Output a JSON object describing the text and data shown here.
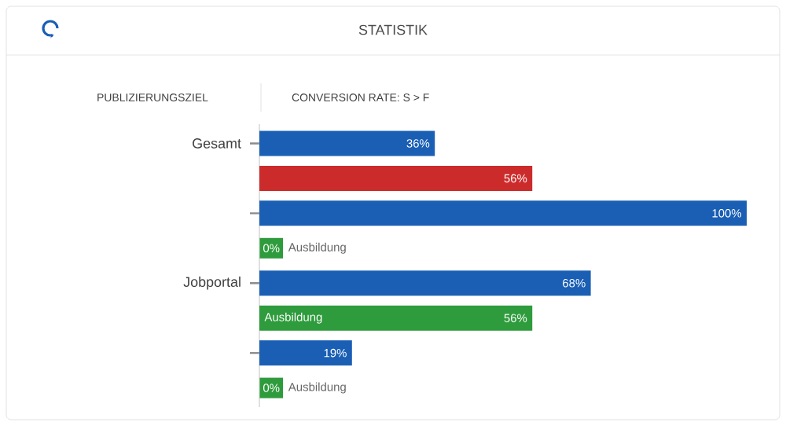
{
  "chart_data": {
    "type": "bar",
    "orientation": "horizontal",
    "title": "STATISTIK",
    "subtitle": "PUBLIZIERUNGSZIEL",
    "annotations": [
      "CONVERSION RATE: S > F"
    ],
    "categories": [
      "Gesamt",
      null,
      "Jobportal",
      null
    ],
    "series": [
      {
        "color": "#1a5fb4",
        "values": [
          36,
          100,
          68,
          19
        ],
        "value_labels": [
          "36%",
          "100%",
          "68%",
          "19%"
        ]
      },
      {
        "color": "#cc2b2b",
        "values": [
          56,
          null,
          null,
          null
        ],
        "value_labels": [
          "56%",
          null,
          null,
          null
        ]
      },
      {
        "name": "Ausbildung",
        "color": "#2e9b3c",
        "values": [
          null,
          0,
          56,
          0
        ],
        "value_labels": [
          null,
          "0%",
          "56%",
          "0%"
        ]
      }
    ]
  }
}
